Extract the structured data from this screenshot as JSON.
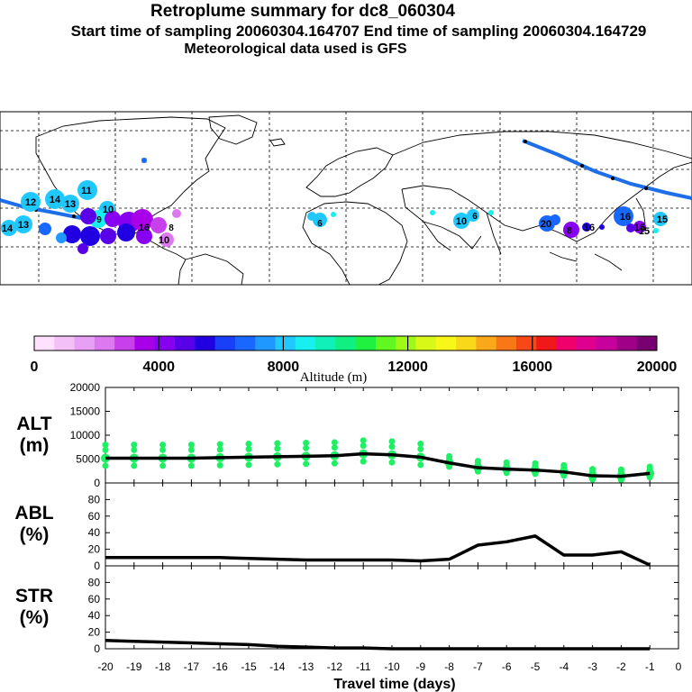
{
  "header": {
    "title": "Retroplume summary for dc8_060304",
    "sampling_line": "Start time of sampling 20060304.164707     End time of sampling 20060304.164729",
    "met_line": "Meteorological data used is GFS"
  },
  "colorbar": {
    "ticks": [
      "0",
      "4000",
      "8000",
      "12000",
      "16000",
      "20000"
    ],
    "label": "Altitude (m)",
    "colors": [
      "#ffe0ff",
      "#f4c0f8",
      "#e8a0f4",
      "#dc78f0",
      "#c840ec",
      "#a800e8",
      "#8800f0",
      "#5a00e8",
      "#2000e0",
      "#1840f8",
      "#1868ff",
      "#2098ff",
      "#20c8ff",
      "#18f0f0",
      "#10f0b8",
      "#10f080",
      "#20f040",
      "#60f820",
      "#a0f818",
      "#d8f818",
      "#f8f818",
      "#f8d818",
      "#f8a818",
      "#f87818",
      "#f84818",
      "#f01818",
      "#f0006a",
      "#e00090",
      "#c8009c",
      "#a00088",
      "#780070"
    ]
  },
  "map": {
    "trajectory_color": "#1e6ee8",
    "labels": [
      "12",
      "14",
      "13",
      "11",
      "14",
      "13",
      "10",
      "9",
      "10",
      "16",
      "8",
      "6",
      "10",
      "6",
      "20",
      "8",
      "16",
      "15",
      "15",
      "16",
      "15"
    ]
  },
  "chart_data": [
    {
      "type": "line",
      "panel": "ALT",
      "ylabel": "ALT (m)",
      "ylabel_lines": [
        "ALT",
        "(m)"
      ],
      "ylim": [
        0,
        20000
      ],
      "yticks": [
        "0",
        "5000",
        "10000",
        "15000",
        "20000"
      ],
      "x": [
        -20,
        -19,
        -18,
        -17,
        -16,
        -15,
        -14,
        -13,
        -12,
        -11,
        -10,
        -9,
        -8,
        -7,
        -6,
        -5,
        -4,
        -3,
        -2,
        -1
      ],
      "series": [
        {
          "name": "mean altitude",
          "values": [
            5200,
            5200,
            5200,
            5200,
            5300,
            5400,
            5500,
            5600,
            5700,
            6100,
            5900,
            5400,
            4200,
            3200,
            2900,
            2700,
            2300,
            1500,
            1400,
            2000
          ]
        }
      ],
      "point_color": "#1ef064"
    },
    {
      "type": "line",
      "panel": "ABL",
      "ylabel": "ABL (%)",
      "ylabel_lines": [
        "ABL",
        "(%)"
      ],
      "ylim": [
        0,
        100
      ],
      "yticks": [
        "0",
        "20",
        "40",
        "60",
        "80"
      ],
      "x": [
        -20,
        -19,
        -18,
        -17,
        -16,
        -15,
        -14,
        -13,
        -12,
        -11,
        -10,
        -9,
        -8,
        -7,
        -6,
        -5,
        -4,
        -3,
        -2,
        -1
      ],
      "series": [
        {
          "name": "ABL fraction",
          "values": [
            10,
            10,
            10,
            10,
            10,
            9,
            8,
            7,
            7,
            7,
            7,
            6,
            8,
            25,
            29,
            36,
            13,
            13,
            17,
            1
          ]
        }
      ]
    },
    {
      "type": "line",
      "panel": "STR",
      "ylabel": "STR (%)",
      "ylabel_lines": [
        "STR",
        "(%)"
      ],
      "ylim": [
        0,
        100
      ],
      "yticks": [
        "0",
        "20",
        "40",
        "60",
        "80"
      ],
      "x": [
        -20,
        -19,
        -18,
        -17,
        -16,
        -15,
        -14,
        -13,
        -12,
        -11,
        -10,
        -9,
        -8,
        -7,
        -6,
        -5,
        -4,
        -3,
        -2,
        -1
      ],
      "series": [
        {
          "name": "STR fraction",
          "values": [
            10,
            9,
            8,
            7,
            6,
            5,
            3,
            2,
            1,
            1,
            0,
            0,
            0,
            0,
            0,
            0,
            0,
            0,
            0,
            0
          ]
        }
      ],
      "xlabel": "Travel time (days)",
      "xticks": [
        "-20",
        "-19",
        "-18",
        "-17",
        "-16",
        "-15",
        "-14",
        "-13",
        "-12",
        "-11",
        "-10",
        "-9",
        "-8",
        "-7",
        "-6",
        "-5",
        "-4",
        "-3",
        "-2",
        "-1",
        "0"
      ]
    }
  ]
}
